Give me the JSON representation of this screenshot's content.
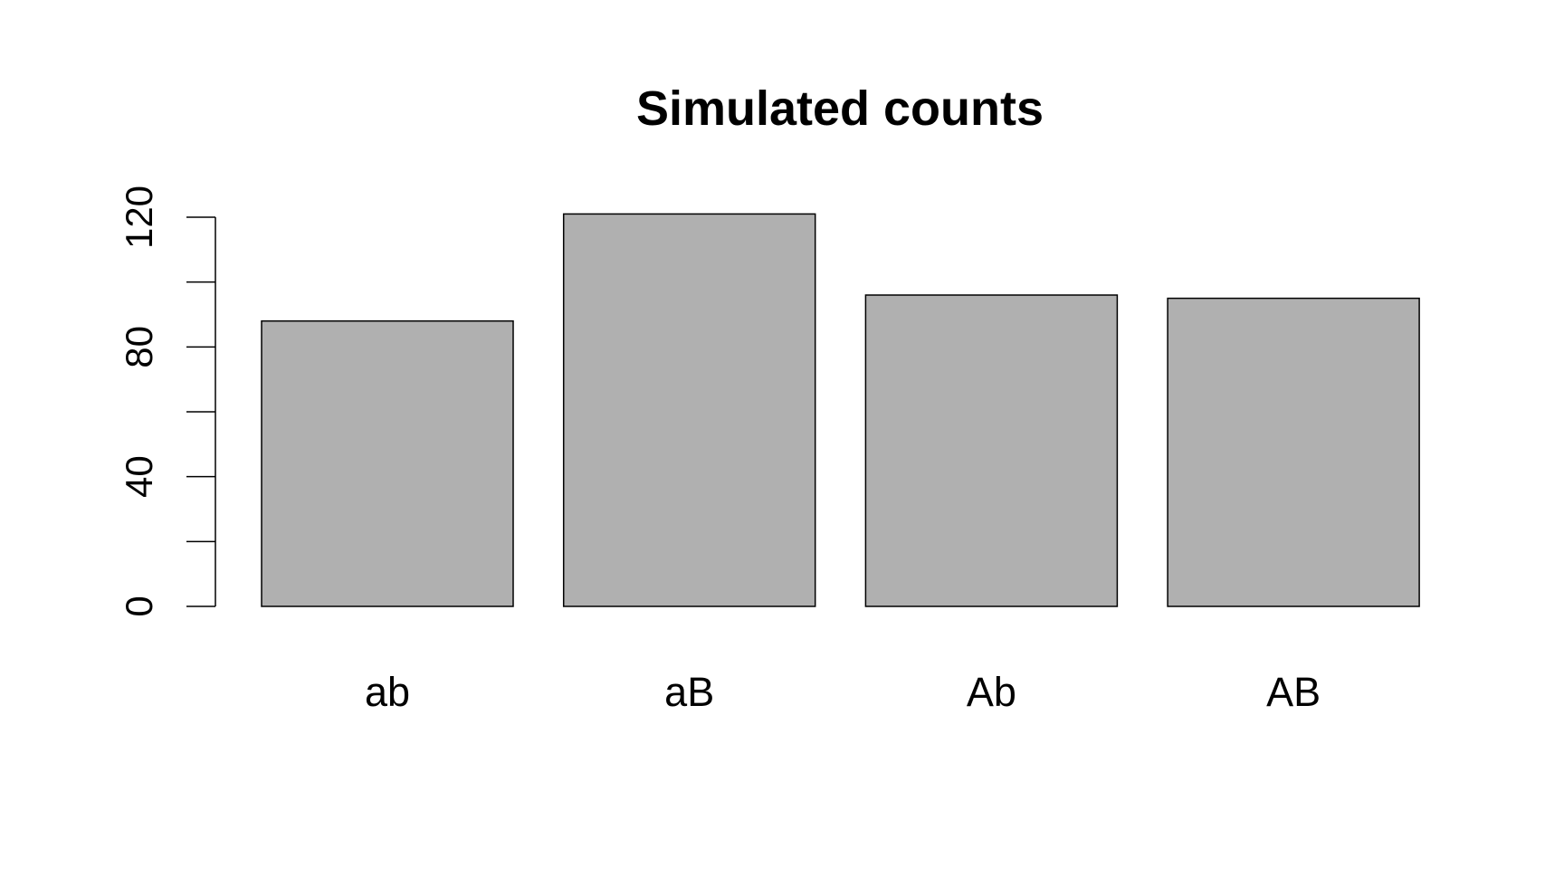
{
  "chart_data": {
    "type": "bar",
    "title": "Simulated counts",
    "xlabel": "",
    "ylabel": "",
    "categories": [
      "ab",
      "aB",
      "Ab",
      "AB"
    ],
    "values": [
      88,
      121,
      96,
      95
    ],
    "ylim": [
      0,
      120
    ],
    "yticks": [
      0,
      20,
      40,
      60,
      80,
      100,
      120
    ],
    "ytick_labels": [
      "0",
      "",
      "40",
      "",
      "80",
      "",
      "120"
    ],
    "grid": false,
    "legend": "none",
    "bar_color": "#b0b0b0",
    "bar_edge_color": "#000000"
  }
}
